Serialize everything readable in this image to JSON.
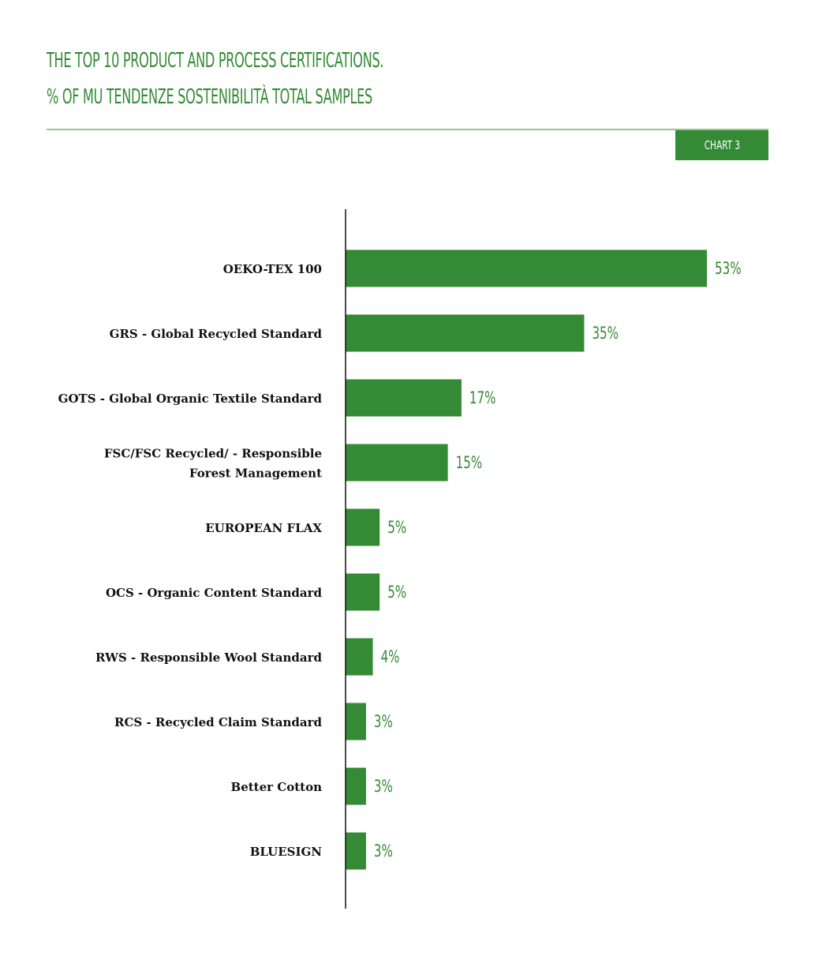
{
  "header": {
    "title_line1": "THE TOP 10 PRODUCT AND PROCESS CERTIFICATIONS.",
    "title_line2": "% OF MU TENDENZE SOSTENIBILITÀ TOTAL SAMPLES",
    "badge": "CHART 3"
  },
  "colors": {
    "accent": "#348a35",
    "rule": "#9cc58d",
    "axis": "#111111",
    "label": "#111111"
  },
  "chart_data": {
    "type": "bar",
    "orientation": "horizontal",
    "categories": [
      "OEKO-TEX 100",
      "GRS - Global Recycled Standard",
      "GOTS - Global Organic Textile Standard",
      "FSC/FSC Recycled/ - Responsible Forest Management",
      "EUROPEAN FLAX",
      "OCS - Organic Content Standard",
      "RWS - Responsible Wool Standard",
      "RCS - Recycled Claim Standard",
      "Better Cotton",
      "BLUESIGN"
    ],
    "category_label_lines": [
      [
        "OEKO-TEX 100"
      ],
      [
        "GRS - Global Recycled Standard"
      ],
      [
        "GOTS - Global Organic Textile Standard"
      ],
      [
        "FSC/FSC Recycled/ - Responsible",
        "Forest Management"
      ],
      [
        "EUROPEAN FLAX"
      ],
      [
        "OCS - Organic Content Standard"
      ],
      [
        "RWS - Responsible Wool Standard"
      ],
      [
        "RCS - Recycled Claim Standard"
      ],
      [
        "Better Cotton"
      ],
      [
        "BLUESIGN"
      ]
    ],
    "values": [
      53,
      35,
      17,
      15,
      5,
      5,
      4,
      3,
      3,
      3
    ],
    "value_labels": [
      "53%",
      "35%",
      "17%",
      "15%",
      "5%",
      "5%",
      "4%",
      "3%",
      "3%",
      "3%"
    ],
    "unit": "%",
    "xlim": [
      0,
      60
    ],
    "grid": false,
    "legend": "none"
  }
}
